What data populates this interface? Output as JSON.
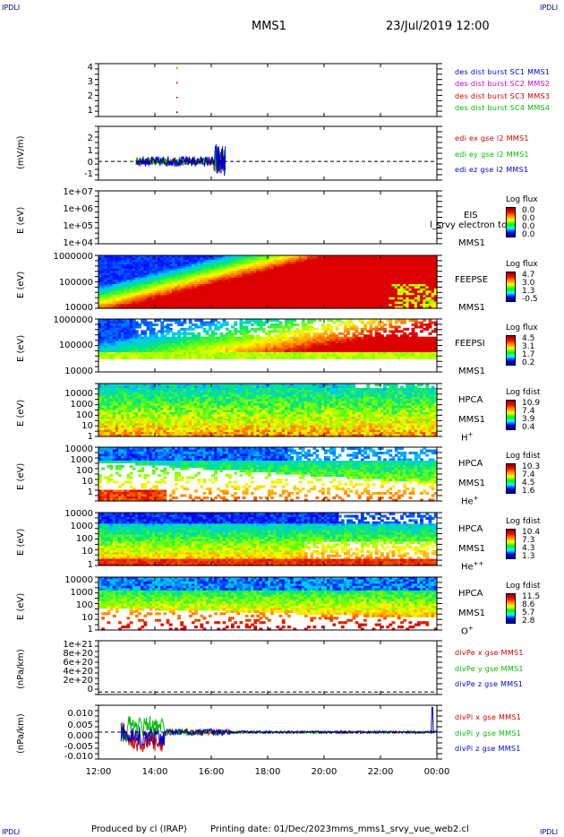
{
  "header": {
    "corner_tl": "IPDLI",
    "corner_tr": "IPDLI",
    "corner_bl": "IPDLI",
    "corner_br": "IPDLI",
    "spacecraft": "MMS1",
    "datetime": "23/Jul/2019 12:00"
  },
  "footer": {
    "produced": "Produced by cl (IRAP)",
    "printing": "Printing date: 01/Dec/2023",
    "script": "mms_mms1_srvy_vue_web2.cl"
  },
  "chart_data": {
    "type": "multi-panel time series",
    "x_ticks": [
      "12:00",
      "14:00",
      "16:00",
      "18:00",
      "20:00",
      "22:00",
      "00:00"
    ],
    "xlim": [
      "12:00",
      "00:00"
    ],
    "panels": [
      {
        "id": "dist_burst",
        "type": "scatter",
        "yticks": [
          "4",
          "3",
          "2",
          "1"
        ],
        "ylim": [
          0.7,
          4.3
        ],
        "legend": [
          {
            "label": "des dist burst SC1 MMS1",
            "color": "#0000cc"
          },
          {
            "label": "des dist burst SC2 MMS2",
            "color": "#cc00cc"
          },
          {
            "label": "des dist burst SC3 MMS3",
            "color": "#cc0000"
          },
          {
            "label": "des dist burst SC4 MMS4",
            "color": "#00bb00"
          }
        ],
        "points": [
          {
            "time": "14:47",
            "y": 4,
            "color": "#00bb00"
          },
          {
            "time": "14:47",
            "y": 3,
            "color": "#cc0000"
          },
          {
            "time": "14:47",
            "y": 2,
            "color": "#cc0000"
          },
          {
            "time": "14:47",
            "y": 1,
            "color": "#0000cc"
          }
        ]
      },
      {
        "id": "edi_e",
        "type": "line",
        "ylabel": "(mV/m)",
        "yticks": [
          "2",
          "1",
          "0",
          "-1"
        ],
        "ylim": [
          -1.5,
          2.8
        ],
        "zero_line": true,
        "legend": [
          {
            "label": "edi ex gse l2 MMS1",
            "color": "#cc0000"
          },
          {
            "label": "edi ey gse l2 MMS1",
            "color": "#00bb00"
          },
          {
            "label": "edi ez gse l2 MMS1",
            "color": "#0000cc"
          }
        ],
        "active_interval": [
          "13:20",
          "16:30"
        ]
      },
      {
        "id": "eis",
        "type": "heatmap",
        "ylabel": "E (eV)",
        "yticks": [
          "1e+07",
          "1e+06",
          "1e+05",
          "1e+04"
        ],
        "side_labels": [
          "EIS",
          "MMS1"
        ],
        "overlay_text": "l_srvy electron to",
        "cbar_title": "Log flux",
        "cbar_values": [
          "0.0",
          "0.0",
          "0.0",
          "0.0"
        ]
      },
      {
        "id": "feeps_e",
        "type": "heatmap",
        "ylabel": "E (eV)",
        "yticks": [
          "1000000",
          "100000",
          "10000"
        ],
        "side_labels": [
          "FEEPSE",
          "MMS1"
        ],
        "cbar_title": "Log flux",
        "cbar_values": [
          "4.7",
          "3.0",
          "1.3",
          "-0.5"
        ]
      },
      {
        "id": "feeps_i",
        "type": "heatmap",
        "ylabel": "E (eV)",
        "yticks": [
          "1000000",
          "100000",
          "10000"
        ],
        "side_labels": [
          "FEEPSI",
          "MMS1"
        ],
        "cbar_title": "Log flux",
        "cbar_values": [
          "4.5",
          "3.1",
          "1.7",
          "0.2"
        ]
      },
      {
        "id": "hpca_h",
        "type": "heatmap",
        "ylabel": "E (eV)",
        "yticks": [
          "10000",
          "1000",
          "100",
          "10",
          "1"
        ],
        "side_labels": [
          "HPCA",
          "MMS1"
        ],
        "species": "H",
        "species_sup": "+",
        "cbar_title": "Log fdist",
        "cbar_values": [
          "10.9",
          "7.4",
          "3.9",
          "0.4"
        ]
      },
      {
        "id": "hpca_he",
        "type": "heatmap",
        "ylabel": "E (eV)",
        "yticks": [
          "10000",
          "1000",
          "100",
          "10",
          "1"
        ],
        "side_labels": [
          "HPCA",
          "MMS1"
        ],
        "species": "He",
        "species_sup": "+",
        "cbar_title": "Log fdist",
        "cbar_values": [
          "10.3",
          "7.4",
          "4.5",
          "1.6"
        ]
      },
      {
        "id": "hpca_hepp",
        "type": "heatmap",
        "ylabel": "E (eV)",
        "yticks": [
          "10000",
          "1000",
          "100",
          "10",
          "1"
        ],
        "side_labels": [
          "HPCA",
          "MMS1"
        ],
        "species": "He",
        "species_sup": "++",
        "cbar_title": "Log fdist",
        "cbar_values": [
          "10.4",
          "7.3",
          "4.3",
          "1.3"
        ]
      },
      {
        "id": "hpca_o",
        "type": "heatmap",
        "ylabel": "E (eV)",
        "yticks": [
          "10000",
          "1000",
          "100",
          "10",
          "1"
        ],
        "side_labels": [
          "HPCA",
          "MMS1"
        ],
        "species": "O",
        "species_sup": "+",
        "cbar_title": "Log fdist",
        "cbar_values": [
          "11.5",
          "8.6",
          "5.7",
          "2.8"
        ]
      },
      {
        "id": "divpe",
        "type": "line",
        "ylabel": "(nPa/km)",
        "yticks": [
          "1e+21",
          "8e+20",
          "6e+20",
          "4e+20",
          "2e+20",
          "0"
        ],
        "ylim": [
          -5e+19,
          1.05e+21
        ],
        "zero_line": true,
        "legend": [
          {
            "label": "divPe x gse MMS1",
            "color": "#cc0000"
          },
          {
            "label": "divPe y gse MMS1",
            "color": "#00bb00"
          },
          {
            "label": "divPe z gse MMS1",
            "color": "#0000cc"
          }
        ]
      },
      {
        "id": "divpi",
        "type": "line",
        "ylabel": "(nPa/km)",
        "yticks": [
          "0.010",
          "0.005",
          "0.000",
          "-0.005",
          "-0.010"
        ],
        "ylim": [
          -0.013,
          0.013
        ],
        "zero_line": true,
        "legend": [
          {
            "label": "divPi x gse MMS1",
            "color": "#cc0000"
          },
          {
            "label": "divPi y gse MMS1",
            "color": "#00bb00"
          },
          {
            "label": "divPi z gse MMS1",
            "color": "#0000cc"
          }
        ]
      }
    ]
  }
}
